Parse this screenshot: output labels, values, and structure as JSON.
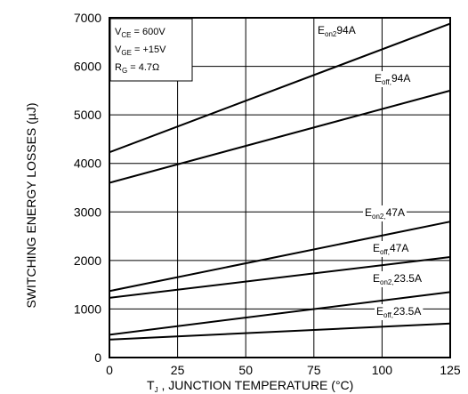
{
  "chart_data": {
    "type": "line",
    "xlabel": "T , JUNCTION TEMPERATURE (°C)",
    "xlabel_sub": "J",
    "ylabel": "SWITCHING ENERGY LOSSES (µJ)",
    "xlim": [
      0,
      125
    ],
    "ylim": [
      0,
      7000
    ],
    "x_ticks": [
      0,
      25,
      50,
      75,
      100,
      125
    ],
    "y_ticks": [
      0,
      1000,
      2000,
      3000,
      4000,
      5000,
      6000,
      7000
    ],
    "grid": true,
    "conditions_box": {
      "lines": [
        {
          "main": "V",
          "sub": "CE",
          "rest": " =  600V"
        },
        {
          "main": "V",
          "sub": "GE",
          "rest": " =  +15V"
        },
        {
          "main": "R",
          "sub": "G",
          "rest": " = 4.7Ω"
        }
      ]
    },
    "series": [
      {
        "name": "Eon2 94A",
        "label_main": "E",
        "label_sub": "on2",
        "label_rest": "94A",
        "x": [
          0,
          125
        ],
        "values": [
          4230,
          6880
        ]
      },
      {
        "name": "Eoff 94A",
        "label_main": "E",
        "label_sub": "off,",
        "label_rest": "94A",
        "x": [
          0,
          125
        ],
        "values": [
          3600,
          5500
        ]
      },
      {
        "name": "Eon2 47A",
        "label_main": "E",
        "label_sub": "on2,",
        "label_rest": "47A",
        "x": [
          0,
          125
        ],
        "values": [
          1370,
          2800
        ]
      },
      {
        "name": "Eoff 47A",
        "label_main": "E",
        "label_sub": "off,",
        "label_rest": "47A",
        "x": [
          0,
          125
        ],
        "values": [
          1230,
          2070
        ]
      },
      {
        "name": "Eon2 23.5A",
        "label_main": "E",
        "label_sub": "on2,",
        "label_rest": "23.5A",
        "x": [
          0,
          125
        ],
        "values": [
          470,
          1350
        ]
      },
      {
        "name": "Eoff 23.5A",
        "label_main": "E",
        "label_sub": "off,",
        "label_rest": "23.5A",
        "x": [
          0,
          125
        ],
        "values": [
          370,
          700
        ]
      }
    ]
  }
}
